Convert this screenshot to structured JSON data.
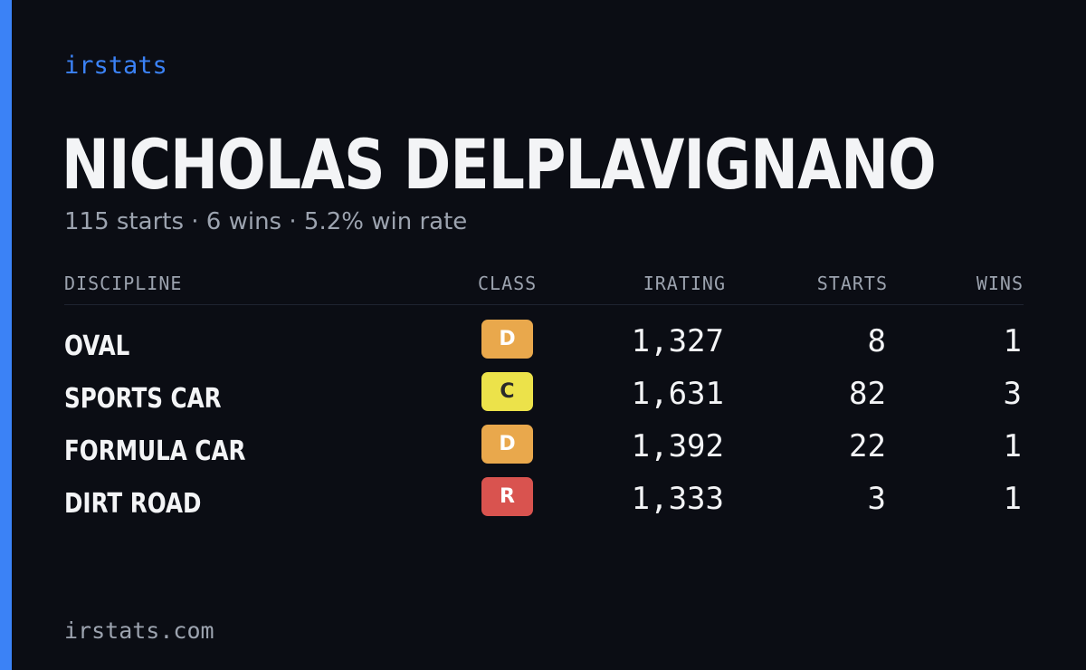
{
  "brand": "irstats",
  "driver": {
    "name": "NICHOLAS DELPLAVIGNANO",
    "summary": "115 starts · 6 wins · 5.2% win rate"
  },
  "table": {
    "headers": {
      "discipline": "DISCIPLINE",
      "class": "CLASS",
      "irating": "IRATING",
      "starts": "STARTS",
      "wins": "WINS"
    },
    "rows": [
      {
        "discipline": "OVAL",
        "class": "D",
        "class_color": "#e9a84c",
        "class_text_color": "#ffffff",
        "irating": "1,327",
        "starts": "8",
        "wins": "1"
      },
      {
        "discipline": "SPORTS CAR",
        "class": "C",
        "class_color": "#ece24a",
        "class_text_color": "#2a2a2a",
        "irating": "1,631",
        "starts": "82",
        "wins": "3"
      },
      {
        "discipline": "FORMULA CAR",
        "class": "D",
        "class_color": "#e9a84c",
        "class_text_color": "#ffffff",
        "irating": "1,392",
        "starts": "22",
        "wins": "1"
      },
      {
        "discipline": "DIRT ROAD",
        "class": "R",
        "class_color": "#d9534f",
        "class_text_color": "#ffffff",
        "irating": "1,333",
        "starts": "3",
        "wins": "1"
      }
    ]
  },
  "footer": {
    "url": "irstats.com"
  },
  "colors": {
    "accent": "#3b82f6",
    "background": "#0b0d14"
  }
}
